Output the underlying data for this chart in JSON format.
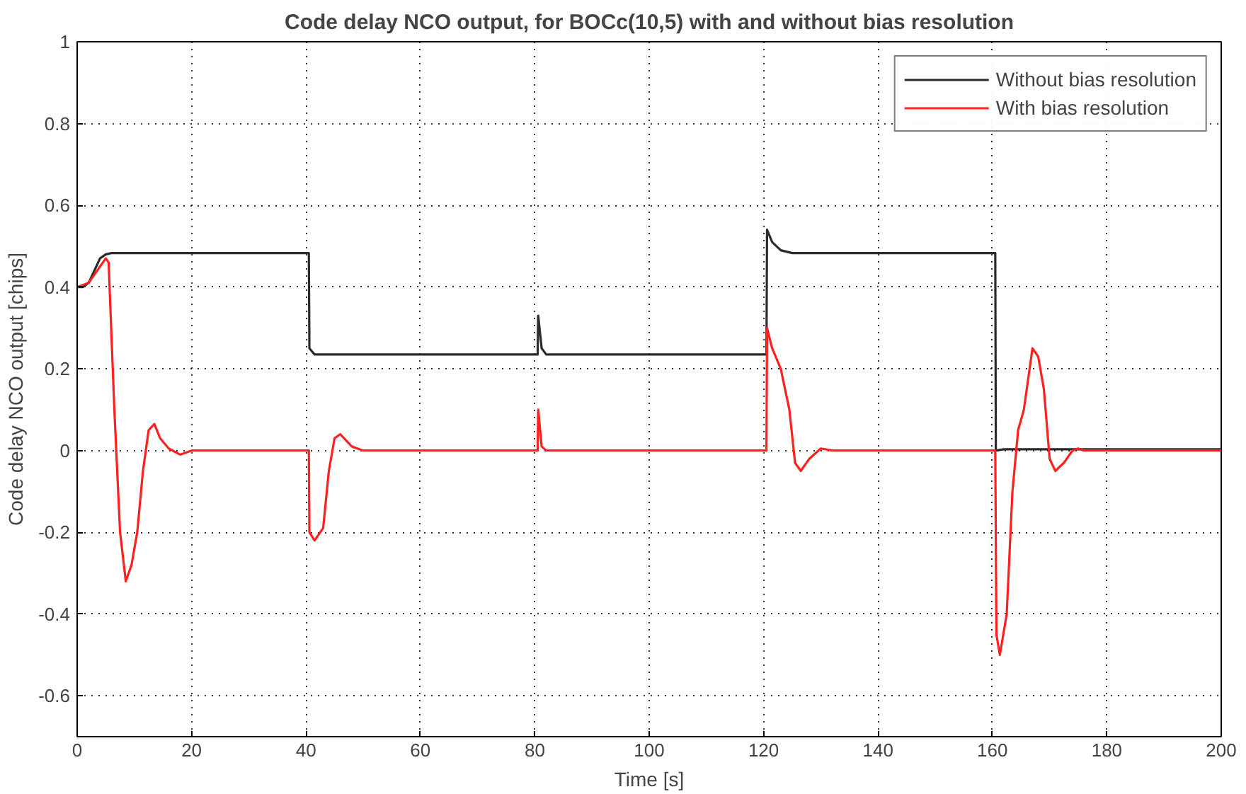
{
  "chart_data": {
    "type": "line",
    "title": "Code delay NCO output, for BOCc(10,5) with and without bias resolution",
    "xlabel": "Time [s]",
    "ylabel": "Code delay NCO output [chips]",
    "xlim": [
      0,
      200
    ],
    "xticks": [
      0,
      20,
      40,
      60,
      80,
      100,
      120,
      140,
      160,
      180,
      200
    ],
    "ylim": [
      -0.7,
      1
    ],
    "yticks": [
      -0.6,
      -0.4,
      -0.2,
      0,
      0.2,
      0.4,
      0.6,
      0.8,
      1
    ],
    "grid": true,
    "legend": "top right",
    "line_style": "solid",
    "series": [
      {
        "name": "Without bias resolution",
        "color": "#2b2b2b",
        "x": [
          0,
          1,
          2,
          3,
          4,
          5,
          6,
          40.5,
          40.6,
          41.5,
          80.5,
          80.6,
          81.2,
          82,
          120.5,
          120.6,
          121.5,
          123,
          125,
          160.5,
          160.6,
          162,
          200
        ],
        "values": [
          0.4,
          0.4,
          0.41,
          0.44,
          0.47,
          0.48,
          0.483,
          0.483,
          0.25,
          0.235,
          0.235,
          0.33,
          0.25,
          0.235,
          0.235,
          0.54,
          0.51,
          0.49,
          0.483,
          0.483,
          0,
          0.003,
          0.003
        ]
      },
      {
        "name": "With bias resolution",
        "color": "#ff2020",
        "x": [
          0,
          2,
          4,
          5,
          5.5,
          6.5,
          7.5,
          8.5,
          9.5,
          10.5,
          11.5,
          12.5,
          13.5,
          14.5,
          16,
          18,
          20,
          40.5,
          40.6,
          41.5,
          43,
          44,
          45,
          46,
          48,
          50,
          80.5,
          80.6,
          81.2,
          82,
          120.5,
          120.6,
          121.5,
          123,
          124.5,
          125.5,
          126.5,
          128,
          130,
          132,
          160.5,
          160.7,
          161.3,
          162.5,
          163.5,
          164.5,
          165.5,
          166.5,
          167,
          168,
          169,
          170,
          171,
          172.5,
          174,
          175,
          176,
          200
        ],
        "values": [
          0.4,
          0.41,
          0.45,
          0.47,
          0.46,
          0.1,
          -0.2,
          -0.32,
          -0.28,
          -0.2,
          -0.05,
          0.05,
          0.065,
          0.03,
          0.005,
          -0.01,
          0,
          0,
          -0.2,
          -0.22,
          -0.19,
          -0.05,
          0.03,
          0.04,
          0.01,
          0,
          0,
          0.1,
          0.01,
          0,
          0,
          0.3,
          0.25,
          0.2,
          0.1,
          -0.03,
          -0.05,
          -0.02,
          0.005,
          0,
          0,
          -0.45,
          -0.5,
          -0.4,
          -0.1,
          0.05,
          0.1,
          0.2,
          0.25,
          0.23,
          0.15,
          -0.02,
          -0.05,
          -0.03,
          0,
          0.005,
          0,
          0
        ]
      }
    ]
  }
}
